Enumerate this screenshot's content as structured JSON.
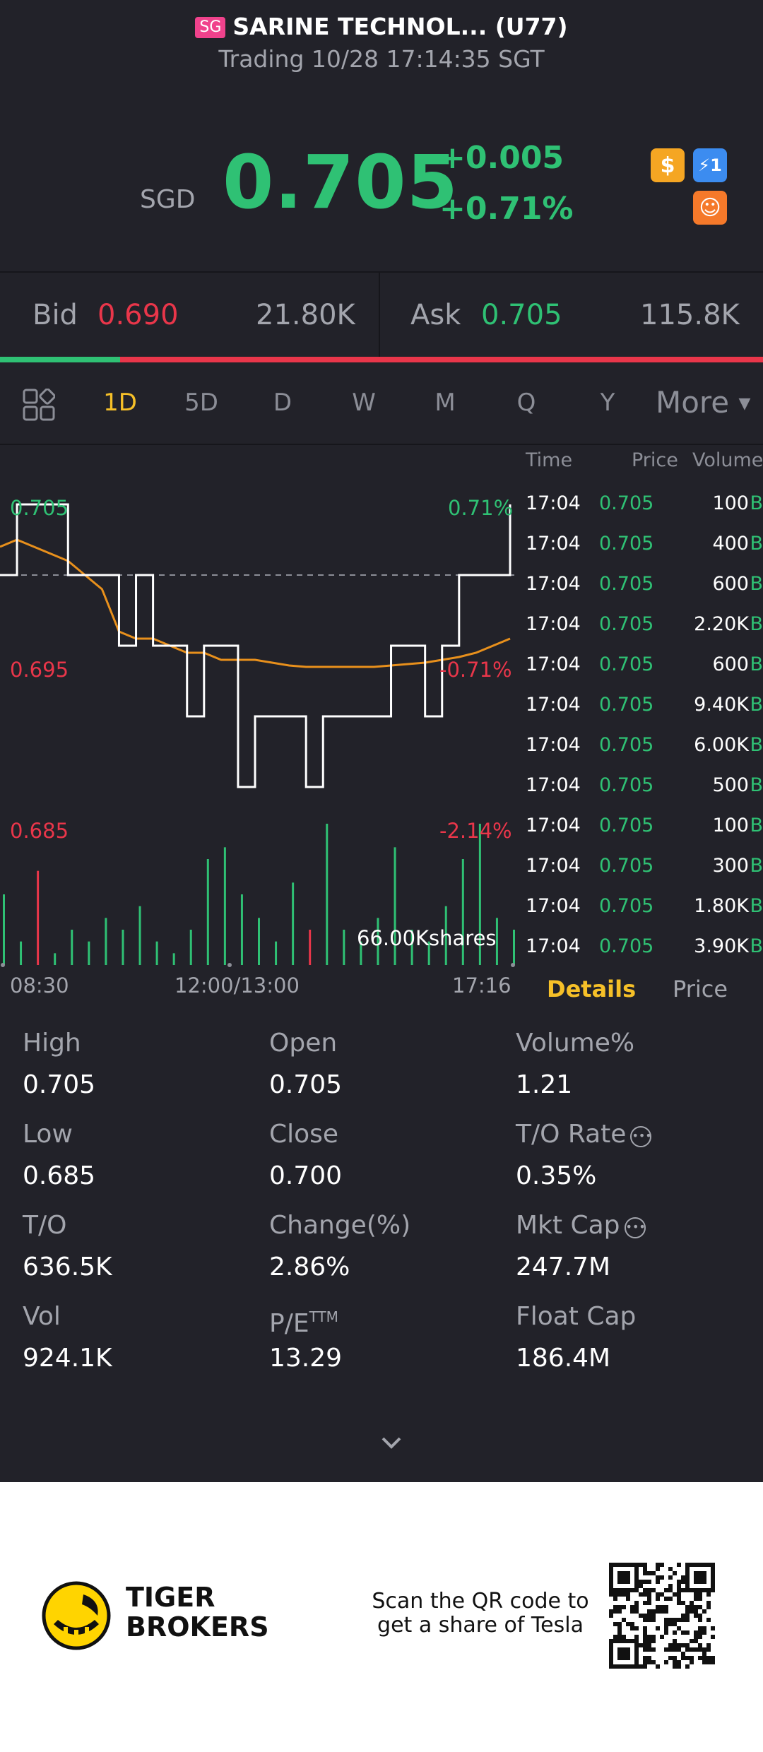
{
  "header": {
    "market_tag": "SG",
    "title": "SARINE TECHNOL... (U77)",
    "status_line": "Trading 10/28 17:14:35 SGT"
  },
  "quote": {
    "currency": "SGD",
    "price": "0.705",
    "change": "+0.005",
    "change_pct": "+0.71%"
  },
  "badges": [
    {
      "icon": "dollar-badge-icon",
      "label": "$",
      "color": "#f5a623"
    },
    {
      "icon": "lightning-badge-icon",
      "label": "⚡1",
      "color": "#3c8cf0"
    },
    {
      "icon": "margin-badge-icon",
      "label": "☺",
      "color": "#f5792a"
    }
  ],
  "orderbook": {
    "bid_label": "Bid",
    "bid_price": "0.690",
    "bid_size": "21.80K",
    "ask_label": "Ask",
    "ask_price": "0.705",
    "ask_size": "115.8K",
    "bid_ratio": 0.157
  },
  "tabs": {
    "items": [
      "1D",
      "5D",
      "D",
      "W",
      "M",
      "Q",
      "Y"
    ],
    "active": "1D",
    "more_label": "More"
  },
  "chart": {
    "price_labels": {
      "top_left": "0.705",
      "top_right": "0.71%",
      "mid_left": "0.695",
      "mid_right": "-0.71%",
      "bottom_left": "0.685",
      "bottom_right": "-2.14%"
    },
    "volume_label": "66.00Kshares",
    "time_labels": [
      "08:30",
      "12:00/13:00",
      "17:16"
    ]
  },
  "chart_data": {
    "type": "line",
    "series": [
      {
        "name": "Price",
        "values": [
          0.7,
          0.705,
          0.705,
          0.705,
          0.7,
          0.7,
          0.7,
          0.695,
          0.7,
          0.695,
          0.695,
          0.69,
          0.695,
          0.695,
          0.685,
          0.69,
          0.69,
          0.69,
          0.685,
          0.69,
          0.69,
          0.69,
          0.69,
          0.695,
          0.695,
          0.69,
          0.695,
          0.7,
          0.7,
          0.7,
          0.705
        ]
      },
      {
        "name": "Avg",
        "values": [
          0.702,
          0.7025,
          0.702,
          0.7015,
          0.701,
          0.7,
          0.699,
          0.696,
          0.6955,
          0.6955,
          0.695,
          0.6945,
          0.6945,
          0.694,
          0.694,
          0.694,
          0.6938,
          0.6936,
          0.6935,
          0.6935,
          0.6935,
          0.6935,
          0.6935,
          0.6936,
          0.6937,
          0.6938,
          0.694,
          0.6942,
          0.6945,
          0.695,
          0.6955
        ]
      }
    ],
    "ylim": [
      0.685,
      0.705
    ],
    "prev_close": 0.7,
    "volume": [
      6,
      2,
      8,
      1,
      3,
      2,
      4,
      3,
      5,
      2,
      1,
      3,
      9,
      10,
      6,
      4,
      2,
      7,
      3,
      12,
      3,
      2,
      4,
      10,
      3,
      2,
      5,
      9,
      12,
      4,
      3
    ]
  },
  "time_sales": {
    "headers": {
      "time": "Time",
      "price": "Price",
      "volume": "Volume"
    },
    "rows": [
      {
        "time": "17:04",
        "price": "0.705",
        "volume": "100",
        "side": "B"
      },
      {
        "time": "17:04",
        "price": "0.705",
        "volume": "400",
        "side": "B"
      },
      {
        "time": "17:04",
        "price": "0.705",
        "volume": "600",
        "side": "B"
      },
      {
        "time": "17:04",
        "price": "0.705",
        "volume": "2.20K",
        "side": "B"
      },
      {
        "time": "17:04",
        "price": "0.705",
        "volume": "600",
        "side": "B"
      },
      {
        "time": "17:04",
        "price": "0.705",
        "volume": "9.40K",
        "side": "B"
      },
      {
        "time": "17:04",
        "price": "0.705",
        "volume": "6.00K",
        "side": "B"
      },
      {
        "time": "17:04",
        "price": "0.705",
        "volume": "500",
        "side": "B"
      },
      {
        "time": "17:04",
        "price": "0.705",
        "volume": "100",
        "side": "B"
      },
      {
        "time": "17:04",
        "price": "0.705",
        "volume": "300",
        "side": "B"
      },
      {
        "time": "17:04",
        "price": "0.705",
        "volume": "1.80K",
        "side": "B"
      },
      {
        "time": "17:04",
        "price": "0.705",
        "volume": "3.90K",
        "side": "B"
      }
    ],
    "tab_details": "Details",
    "tab_price": "Price"
  },
  "stats": {
    "high": {
      "label": "High",
      "value": "0.705"
    },
    "open": {
      "label": "Open",
      "value": "0.705"
    },
    "volume_pct": {
      "label": "Volume%",
      "value": "1.21"
    },
    "low": {
      "label": "Low",
      "value": "0.685"
    },
    "close": {
      "label": "Close",
      "value": "0.700"
    },
    "to_rate": {
      "label": "T/O Rate",
      "value": "0.35%"
    },
    "to": {
      "label": "T/O",
      "value": "636.5K"
    },
    "change_pct": {
      "label": "Change(%)",
      "value": "2.86%"
    },
    "mkt_cap": {
      "label": "Mkt Cap",
      "value": "247.7M"
    },
    "vol": {
      "label": "Vol",
      "value": "924.1K"
    },
    "pe": {
      "label": "P/E",
      "sup": "TTM",
      "value": "13.29"
    },
    "float_cap": {
      "label": "Float Cap",
      "value": "186.4M"
    }
  },
  "footer": {
    "brand_line1": "TIGER",
    "brand_line2": "BROKERS",
    "scan_line1": "Scan the QR code to",
    "scan_line2": "get a share of Tesla"
  },
  "colors": {
    "green": "#2fc174",
    "red": "#e9364a",
    "gold": "#f6c028",
    "avg_line": "#e8901c",
    "background": "#222229"
  }
}
